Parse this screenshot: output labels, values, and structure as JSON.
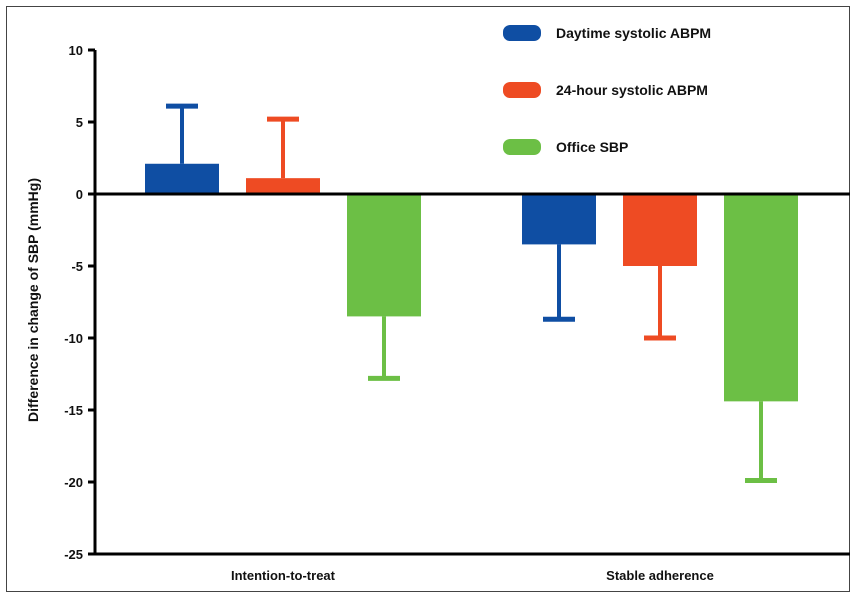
{
  "chart_data": {
    "type": "bar",
    "title": "",
    "xlabel": "",
    "ylabel": "Difference in change of SBP  (mmHg)",
    "ylim": [
      -25,
      10
    ],
    "yticks": [
      10,
      5,
      0,
      -5,
      -10,
      -15,
      -20,
      -25
    ],
    "categories": [
      "Intention-to-treat",
      "Stable adherence"
    ],
    "series": [
      {
        "name": "Daytime systolic ABPM",
        "color": "#0f4ea3",
        "values": [
          2.1,
          -3.5
        ],
        "errors": [
          4.0,
          5.2
        ]
      },
      {
        "name": "24-hour systolic ABPM",
        "color": "#ee4b23",
        "values": [
          1.1,
          -5.0
        ],
        "errors": [
          4.1,
          5.0
        ]
      },
      {
        "name": "Office SBP",
        "color": "#6cbf45",
        "values": [
          -8.5,
          -14.4
        ],
        "errors": [
          4.3,
          5.5
        ]
      }
    ],
    "legend_position": "top-right",
    "grid": false,
    "error_bars": "one-sided"
  }
}
